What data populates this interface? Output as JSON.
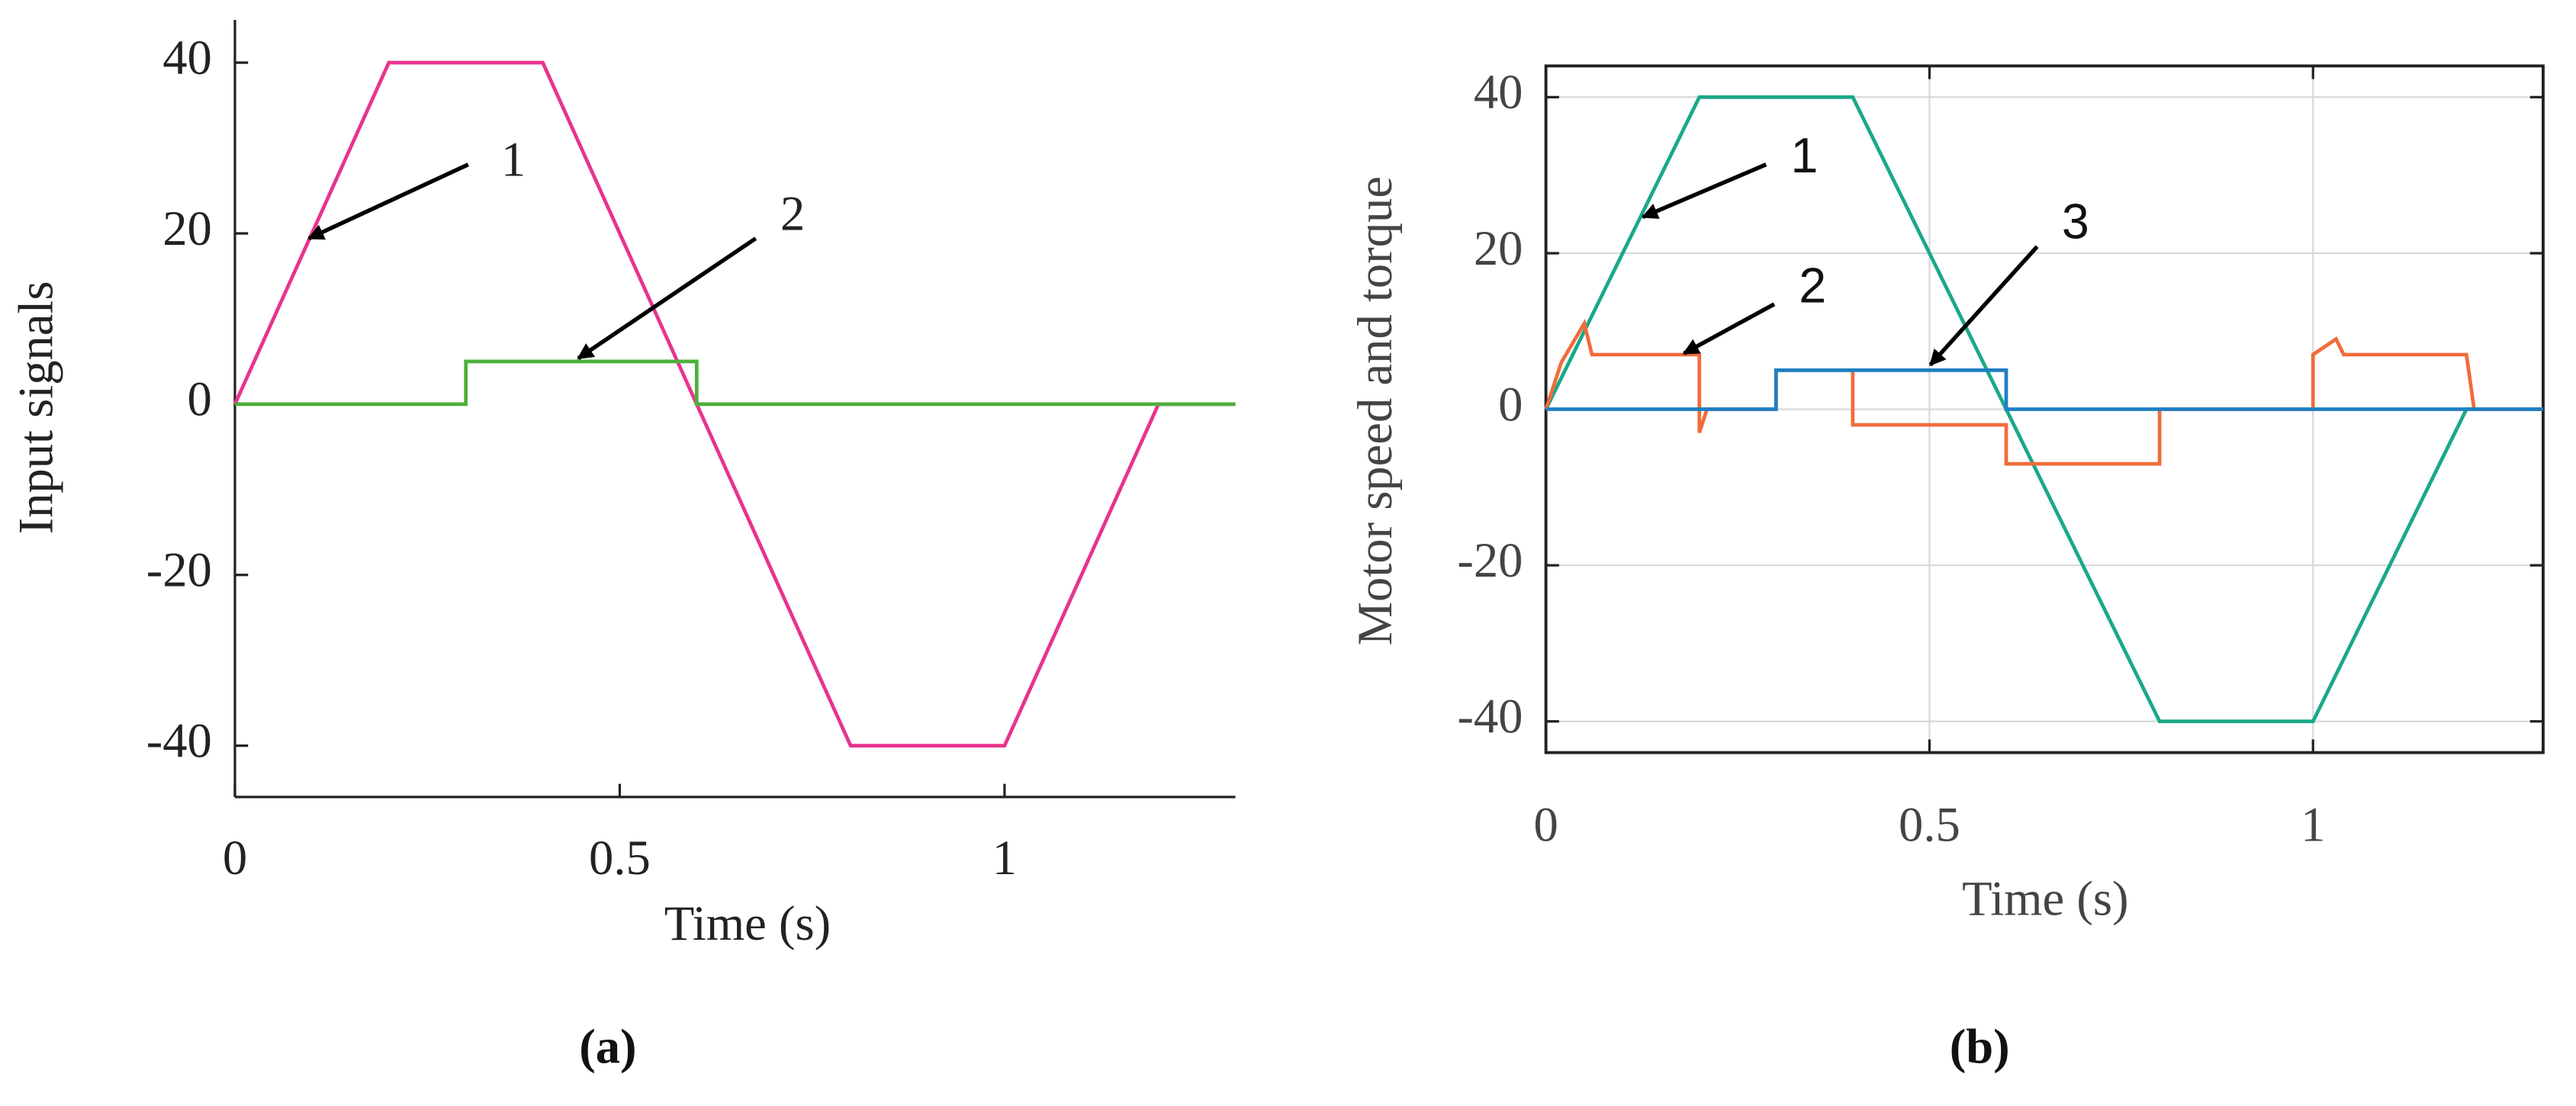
{
  "chart_data": [
    {
      "type": "line",
      "caption": "(a)",
      "xlabel": "Time (s)",
      "ylabel": "Input signals",
      "xlim": [
        0,
        1.3
      ],
      "ylim": [
        -46,
        45
      ],
      "xticks": [
        0,
        0.5,
        1
      ],
      "yticks": [
        40,
        20,
        0,
        -20,
        -40
      ],
      "grid": false,
      "box": false,
      "series": [
        {
          "name": "1",
          "color": "#e8338f",
          "x": [
            0,
            0.2,
            0.4,
            0.8,
            1.0,
            1.2,
            1.3
          ],
          "values": [
            0,
            40,
            40,
            -40,
            -40,
            0,
            0
          ]
        },
        {
          "name": "2",
          "color": "#4caf3a",
          "x": [
            0,
            0.3,
            0.3,
            0.6,
            0.6,
            1.3
          ],
          "values": [
            0,
            0,
            5,
            5,
            0,
            0
          ]
        }
      ]
    },
    {
      "type": "line",
      "caption": "(b)",
      "xlabel": "Time (s)",
      "ylabel": "Motor speed and torque",
      "xlim": [
        0,
        1.3
      ],
      "ylim": [
        -44,
        44
      ],
      "xticks": [
        0,
        0.5,
        1
      ],
      "yticks": [
        40,
        20,
        0,
        -20,
        -40
      ],
      "grid": true,
      "box": true,
      "series": [
        {
          "name": "1",
          "color": "#1aa88a",
          "x": [
            0,
            0.2,
            0.4,
            0.8,
            1.0,
            1.2,
            1.3
          ],
          "values": [
            0,
            40,
            40,
            -40,
            -40,
            0,
            0
          ]
        },
        {
          "name": "2",
          "color": "#f26b3a",
          "x": [
            0,
            0.02,
            0.05,
            0.06,
            0.2,
            0.2,
            0.21,
            0.3,
            0.3,
            0.4,
            0.4,
            0.6,
            0.6,
            0.8,
            0.8,
            1.0,
            1.0,
            1.03,
            1.04,
            1.2,
            1.21,
            1.3
          ],
          "values": [
            0,
            6,
            11,
            7,
            7,
            -3,
            0,
            0,
            5,
            5,
            -2,
            -2,
            -7,
            -7,
            0,
            0,
            7,
            9,
            7,
            7,
            0,
            0
          ]
        },
        {
          "name": "3",
          "color": "#1f7fc4",
          "x": [
            0,
            0.3,
            0.3,
            0.6,
            0.6,
            1.3
          ],
          "values": [
            0,
            0,
            5,
            5,
            0,
            0
          ]
        }
      ]
    }
  ]
}
